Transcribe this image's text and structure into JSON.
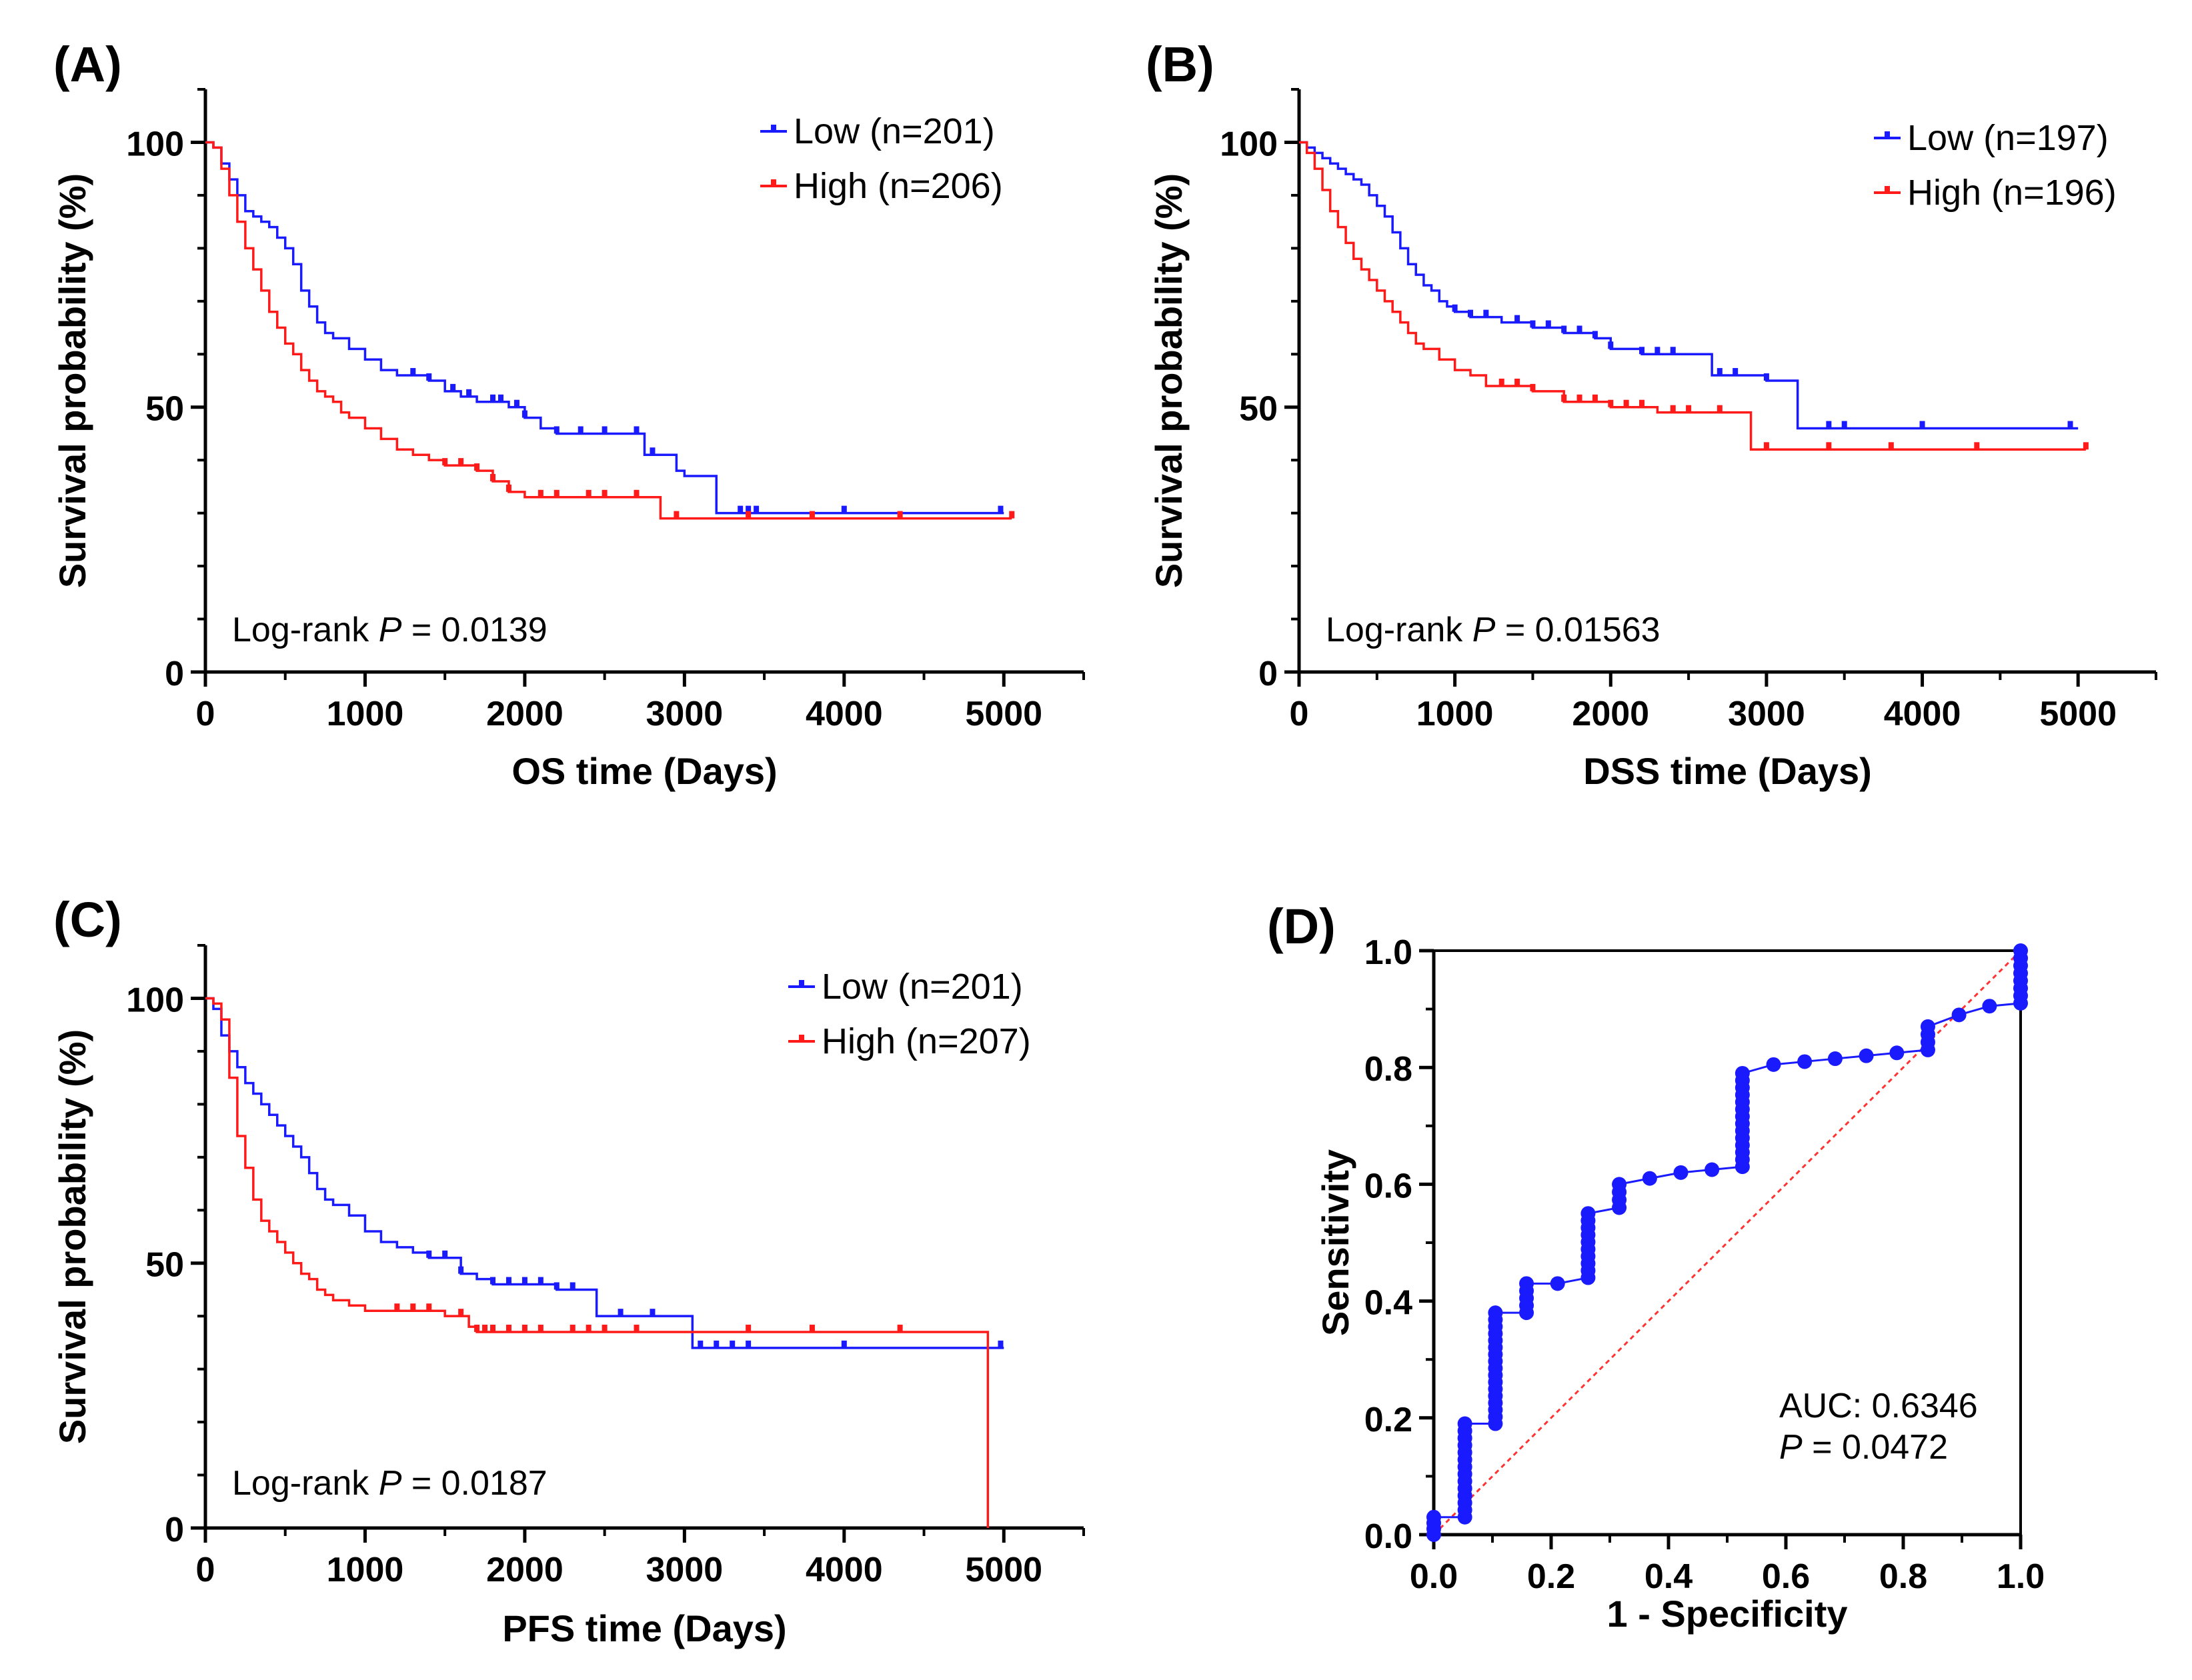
{
  "colors": {
    "low": "#1a1aff",
    "high": "#ff1a1a",
    "axis": "#000000",
    "diag": "#ff3333"
  },
  "chart_data": [
    {
      "type": "line",
      "panel": "(A)",
      "xlabel": "OS time (Days)",
      "ylabel": "Survival probability (%)",
      "xlim": [
        0,
        5500
      ],
      "ylim": [
        0,
        110
      ],
      "xticks": [
        0,
        1000,
        2000,
        3000,
        4000,
        5000
      ],
      "yticks": [
        0,
        50,
        100
      ],
      "annotation": {
        "prefix": "Log-rank ",
        "p": "P",
        "suffix": " = 0.0139"
      },
      "series": [
        {
          "name": "Low (n=201)",
          "color": "low",
          "x": [
            0,
            50,
            100,
            150,
            200,
            250,
            300,
            350,
            400,
            450,
            500,
            550,
            600,
            650,
            700,
            750,
            800,
            900,
            1000,
            1100,
            1200,
            1300,
            1400,
            1500,
            1600,
            1700,
            1800,
            1900,
            2000,
            2100,
            2200,
            2400,
            2600,
            2750,
            2850,
            2950,
            3000,
            3200,
            3500,
            4000,
            5000
          ],
          "y": [
            100,
            99,
            96,
            93,
            90,
            87,
            86,
            85,
            84,
            82,
            80,
            77,
            72,
            69,
            66,
            64,
            63,
            61,
            59,
            57,
            56,
            56,
            55,
            53,
            52,
            51,
            51,
            50,
            48,
            46,
            45,
            45,
            45,
            41,
            41,
            38,
            37,
            30,
            30,
            30,
            30
          ],
          "censor": [
            1300,
            1400,
            1550,
            1650,
            1800,
            1850,
            1950,
            2000,
            2200,
            2350,
            2500,
            2700,
            2800,
            3350,
            3400,
            3450,
            4000,
            4980
          ]
        },
        {
          "name": "High (n=206)",
          "color": "high",
          "x": [
            0,
            50,
            100,
            150,
            200,
            250,
            300,
            350,
            400,
            450,
            500,
            550,
            600,
            650,
            700,
            750,
            800,
            850,
            900,
            1000,
            1100,
            1200,
            1300,
            1400,
            1500,
            1600,
            1700,
            1800,
            1900,
            2000,
            2400,
            2800,
            2850,
            5050
          ],
          "y": [
            100,
            99,
            95,
            90,
            85,
            80,
            76,
            72,
            68,
            65,
            62,
            60,
            57,
            55,
            53,
            52,
            51,
            49,
            48,
            46,
            44,
            42,
            41,
            40,
            39,
            39,
            38,
            36,
            34,
            33,
            33,
            33,
            29,
            29
          ],
          "censor": [
            1500,
            1600,
            1700,
            1800,
            1900,
            2100,
            2200,
            2400,
            2500,
            2700,
            2950,
            3400,
            3800,
            4350,
            5050
          ]
        }
      ]
    },
    {
      "type": "line",
      "panel": "(B)",
      "xlabel": "DSS time (Days)",
      "ylabel": "Survival probability (%)",
      "xlim": [
        0,
        5500
      ],
      "ylim": [
        0,
        110
      ],
      "xticks": [
        0,
        1000,
        2000,
        3000,
        4000,
        5000
      ],
      "yticks": [
        0,
        50,
        100
      ],
      "annotation": {
        "prefix": "Log-rank ",
        "p": "P",
        "suffix": " = 0.01563"
      },
      "series": [
        {
          "name": "Low (n=197)",
          "color": "low",
          "x": [
            0,
            50,
            100,
            150,
            200,
            250,
            300,
            350,
            400,
            450,
            500,
            550,
            600,
            650,
            700,
            750,
            800,
            850,
            900,
            950,
            1000,
            1100,
            1300,
            1500,
            1700,
            1900,
            2000,
            2200,
            2400,
            2650,
            2700,
            3000,
            3200,
            3500,
            4000,
            5000
          ],
          "y": [
            100,
            99,
            98,
            97,
            96,
            95,
            94,
            93,
            92,
            90,
            88,
            86,
            83,
            80,
            77,
            75,
            73,
            72,
            70,
            69,
            68,
            67,
            66,
            65,
            64,
            63,
            61,
            60,
            60,
            56,
            56,
            55,
            46,
            46,
            46,
            46
          ],
          "censor": [
            1000,
            1100,
            1200,
            1400,
            1500,
            1600,
            1700,
            1800,
            1900,
            2000,
            2200,
            2300,
            2400,
            2700,
            2800,
            3000,
            3400,
            3500,
            4000,
            4950
          ]
        },
        {
          "name": "High (n=196)",
          "color": "high",
          "x": [
            0,
            50,
            100,
            150,
            200,
            250,
            300,
            350,
            400,
            450,
            500,
            550,
            600,
            650,
            700,
            750,
            800,
            900,
            1000,
            1100,
            1200,
            1500,
            1700,
            2000,
            2300,
            2800,
            2900,
            5050
          ],
          "y": [
            100,
            98,
            95,
            91,
            87,
            84,
            81,
            78,
            76,
            74,
            72,
            70,
            68,
            66,
            64,
            62,
            61,
            59,
            57,
            56,
            54,
            53,
            51,
            50,
            49,
            49,
            42,
            42
          ],
          "censor": [
            1300,
            1400,
            1500,
            1700,
            1800,
            1900,
            2000,
            2100,
            2200,
            2400,
            2500,
            2700,
            3000,
            3400,
            3800,
            4350,
            5050
          ]
        }
      ]
    },
    {
      "type": "line",
      "panel": "(C)",
      "xlabel": "PFS time (Days)",
      "ylabel": "Survival probability (%)",
      "xlim": [
        0,
        5500
      ],
      "ylim": [
        0,
        110
      ],
      "xticks": [
        0,
        1000,
        2000,
        3000,
        4000,
        5000
      ],
      "yticks": [
        0,
        50,
        100
      ],
      "annotation": {
        "prefix": "Log-rank ",
        "p": "P",
        "suffix": " = 0.0187"
      },
      "series": [
        {
          "name": "Low (n=201)",
          "color": "low",
          "x": [
            0,
            50,
            100,
            150,
            200,
            250,
            300,
            350,
            400,
            450,
            500,
            550,
            600,
            650,
            700,
            750,
            800,
            900,
            1000,
            1100,
            1200,
            1300,
            1400,
            1600,
            1700,
            1800,
            2000,
            2200,
            2450,
            2700,
            3050,
            3100,
            3500,
            4000,
            5000
          ],
          "y": [
            100,
            98,
            93,
            90,
            87,
            84,
            82,
            80,
            78,
            76,
            74,
            72,
            70,
            67,
            64,
            62,
            61,
            59,
            56,
            54,
            53,
            52,
            51,
            48,
            47,
            46,
            46,
            45,
            40,
            40,
            34,
            34,
            34,
            34,
            34
          ],
          "censor": [
            1400,
            1500,
            1600,
            1800,
            1900,
            2000,
            2100,
            2200,
            2300,
            2600,
            2800,
            3100,
            3200,
            3300,
            3400,
            4000,
            4980
          ]
        },
        {
          "name": "High (n=207)",
          "color": "high",
          "x": [
            0,
            50,
            100,
            150,
            200,
            250,
            300,
            350,
            400,
            450,
            500,
            550,
            600,
            650,
            700,
            750,
            800,
            900,
            1000,
            1100,
            1300,
            1500,
            1650,
            1700,
            2000,
            4900
          ],
          "y": [
            100,
            99,
            96,
            85,
            74,
            68,
            62,
            58,
            56,
            54,
            52,
            50,
            48,
            47,
            45,
            44,
            43,
            42,
            41,
            41,
            41,
            40,
            38,
            37,
            37,
            0
          ],
          "censor": [
            1200,
            1300,
            1400,
            1600,
            1700,
            1750,
            1800,
            1900,
            2000,
            2100,
            2300,
            2400,
            2500,
            2700,
            3400,
            3800,
            4350
          ]
        }
      ]
    },
    {
      "type": "line",
      "panel": "(D)",
      "xlabel": "1 - Specificity",
      "ylabel": "Sensitivity",
      "xlim": [
        0,
        1
      ],
      "ylim": [
        0,
        1
      ],
      "xticks": [
        0.0,
        0.2,
        0.4,
        0.6,
        0.8,
        1.0
      ],
      "yticks": [
        0.0,
        0.2,
        0.4,
        0.6,
        0.8,
        1.0
      ],
      "tick_labels": [
        "0.0",
        "0.2",
        "0.4",
        "0.6",
        "0.8",
        "1.0"
      ],
      "auc_text": "AUC: 0.6346",
      "annotation": {
        "prefix": "",
        "p": "P",
        "suffix": " = 0.0472"
      },
      "roc": {
        "x": [
          0,
          0,
          0.053,
          0.053,
          0.105,
          0.105,
          0.158,
          0.158,
          0.211,
          0.263,
          0.263,
          0.316,
          0.316,
          0.368,
          0.421,
          0.474,
          0.526,
          0.526,
          0.579,
          0.632,
          0.684,
          0.737,
          0.789,
          0.842,
          0.842,
          0.895,
          0.947,
          1.0,
          1.0
        ],
        "y": [
          0,
          0.03,
          0.03,
          0.19,
          0.19,
          0.38,
          0.38,
          0.43,
          0.43,
          0.44,
          0.55,
          0.56,
          0.6,
          0.61,
          0.62,
          0.625,
          0.63,
          0.79,
          0.805,
          0.81,
          0.815,
          0.82,
          0.825,
          0.83,
          0.87,
          0.89,
          0.905,
          0.91,
          1.0
        ]
      }
    }
  ]
}
